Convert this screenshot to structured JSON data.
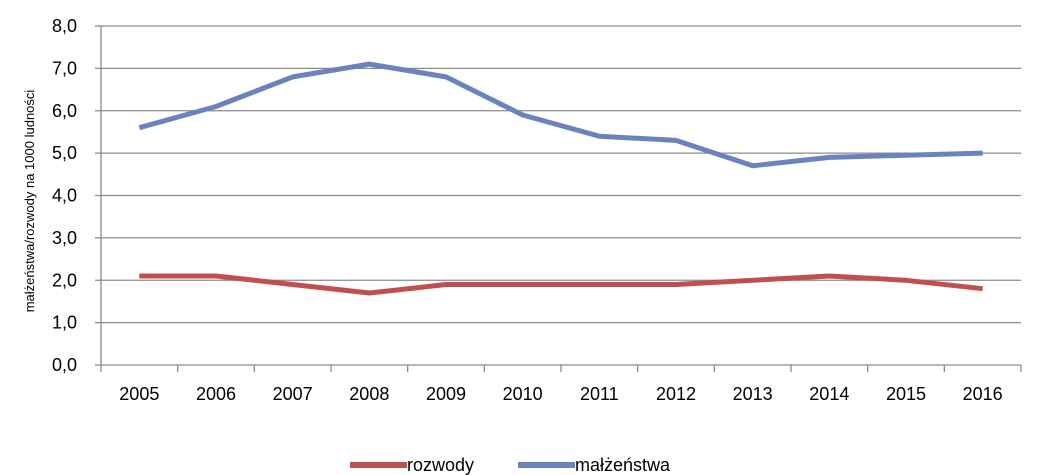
{
  "chart_data": {
    "type": "line",
    "categories": [
      "2005",
      "2006",
      "2007",
      "2008",
      "2009",
      "2010",
      "2011",
      "2012",
      "2013",
      "2014",
      "2015",
      "2016"
    ],
    "series": [
      {
        "name": "rozwody",
        "color": "#C0504D",
        "values": [
          2.1,
          2.1,
          1.9,
          1.7,
          1.9,
          1.9,
          1.9,
          1.9,
          2.0,
          2.1,
          2.0,
          1.8
        ]
      },
      {
        "name": "małżeństwa",
        "color": "#6C82BE",
        "values": [
          5.6,
          6.1,
          6.8,
          7.1,
          6.8,
          5.9,
          5.4,
          5.3,
          4.7,
          4.9,
          4.95,
          5.0
        ]
      }
    ],
    "ylabel": "małżeństwa/rozwody na 1000 ludności",
    "ylim": [
      0,
      8
    ],
    "y_ticks": [
      "0,0",
      "1,0",
      "2,0",
      "3,0",
      "4,0",
      "5,0",
      "6,0",
      "7,0",
      "8,0"
    ],
    "grid": "horizontal",
    "legend_position": "bottom-center"
  }
}
